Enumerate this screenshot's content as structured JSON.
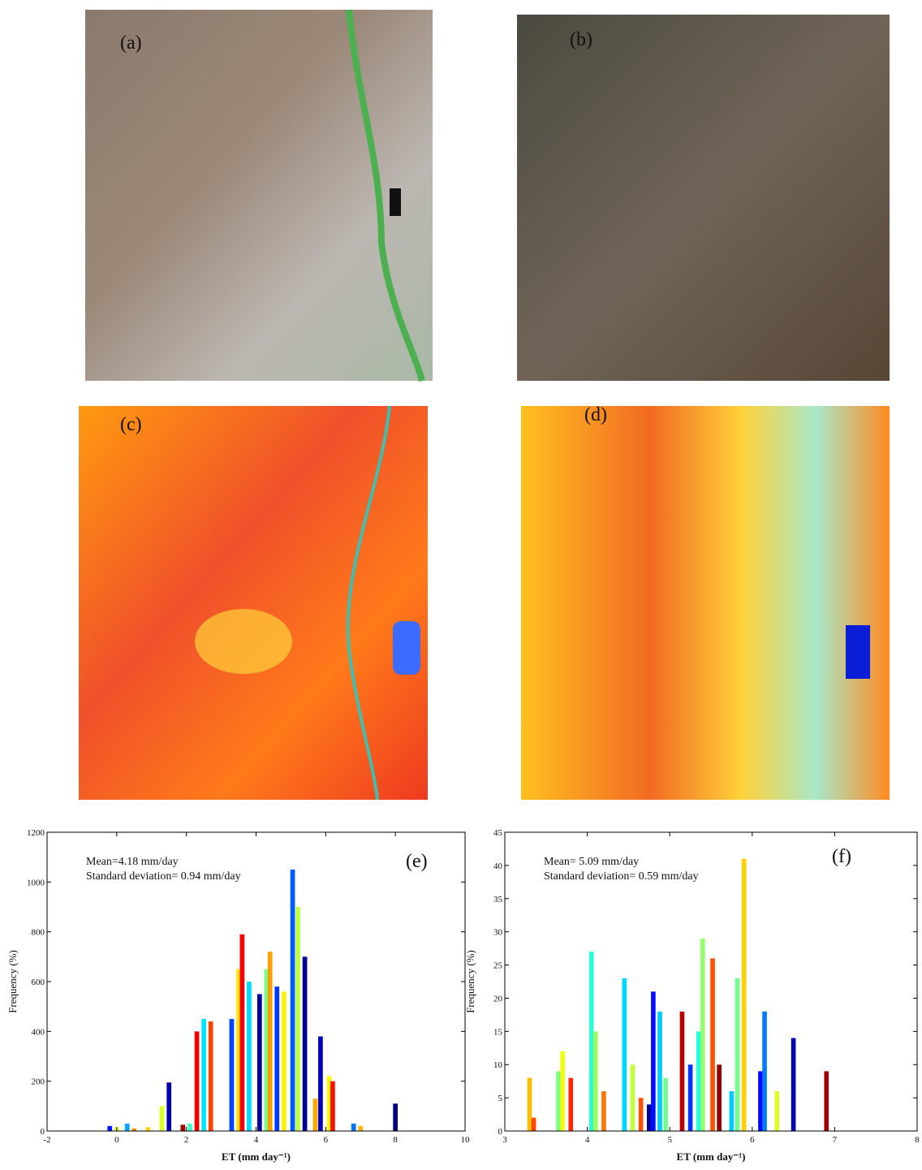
{
  "images": [
    "(a)",
    "(b)",
    "(c)",
    "(d)"
  ],
  "chart_data": [
    {
      "type": "bar",
      "panel_label": "(e)",
      "annotations": [
        "Mean=4.18 mm/day",
        "Standard deviation= 0.94 mm/day"
      ],
      "xlabel": "ET (mm day⁻¹)",
      "ylabel": "Frequency (%)",
      "x": [
        -0.2,
        0,
        0.3,
        0.5,
        0.9,
        1.3,
        1.5,
        1.9,
        2.1,
        2.3,
        2.5,
        2.7,
        3.3,
        3.5,
        3.6,
        3.8,
        4.1,
        4.3,
        4.4,
        4.6,
        4.8,
        5.05,
        5.2,
        5.4,
        5.7,
        5.85,
        6.1,
        6.2,
        6.8,
        7.0,
        8.0
      ],
      "values": [
        20,
        15,
        30,
        10,
        15,
        100,
        195,
        25,
        30,
        400,
        450,
        440,
        450,
        650,
        790,
        600,
        550,
        650,
        720,
        580,
        560,
        1050,
        900,
        700,
        130,
        380,
        220,
        200,
        30,
        20,
        110
      ],
      "xlim": [
        -2,
        10
      ],
      "xticks": [
        -2,
        0,
        2,
        4,
        6,
        8,
        10
      ],
      "ylim": [
        0,
        1200
      ],
      "yticks": [
        0,
        200,
        400,
        600,
        800,
        1000,
        1200
      ]
    },
    {
      "type": "bar",
      "panel_label": "(f)",
      "annotations": [
        "Mean= 5.09 mm/day",
        "Standard deviation= 0.59 mm/day"
      ],
      "xlabel": "ET (mm day⁻¹)",
      "ylabel": "Frequency (%)",
      "x": [
        3.3,
        3.35,
        3.65,
        3.7,
        3.8,
        4.05,
        4.1,
        4.2,
        4.45,
        4.55,
        4.65,
        4.75,
        4.8,
        4.88,
        4.95,
        5.15,
        5.25,
        5.35,
        5.4,
        5.52,
        5.6,
        5.75,
        5.82,
        5.9,
        6.1,
        6.15,
        6.3,
        6.5,
        6.9
      ],
      "values": [
        8,
        2,
        9,
        12,
        8,
        27,
        15,
        6,
        23,
        10,
        5,
        4,
        21,
        18,
        8,
        18,
        10,
        15,
        29,
        26,
        10,
        6,
        23,
        41,
        9,
        18,
        6,
        14,
        9
      ],
      "xlim": [
        3,
        8
      ],
      "xticks": [
        3,
        4,
        5,
        6,
        7,
        8
      ],
      "ylim": [
        0,
        45
      ],
      "yticks": [
        0,
        5,
        10,
        15,
        20,
        25,
        30,
        35,
        40,
        45
      ]
    }
  ]
}
